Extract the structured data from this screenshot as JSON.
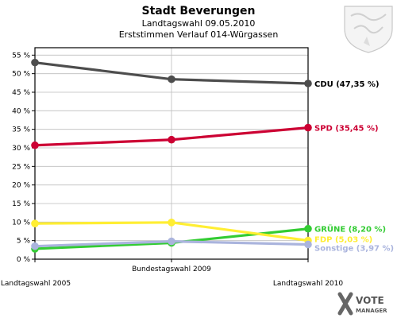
{
  "chart_data": {
    "type": "line",
    "title": "Stadt Beverungen",
    "subtitle_1": "Landtagswahl 09.05.2010",
    "subtitle_2": "Erststimmen Verlauf 014-Würgassen",
    "x": [
      "Landtagswahl 2005",
      "Bundestagswahl 2009",
      "Landtagswahl 2010"
    ],
    "ylim": [
      0,
      57
    ],
    "yticks": [
      "0 %",
      "5 %",
      "10 %",
      "15 %",
      "20 %",
      "25 %",
      "30 %",
      "35 %",
      "40 %",
      "45 %",
      "50 %",
      "55 %"
    ],
    "ytick_values": [
      0,
      5,
      10,
      15,
      20,
      25,
      30,
      35,
      40,
      45,
      50,
      55
    ],
    "grid": true,
    "series": [
      {
        "name": "CDU",
        "label": "CDU (47,35 %)",
        "values": [
          53.0,
          48.5,
          47.35
        ],
        "color": "#4d4d4d"
      },
      {
        "name": "SPD",
        "label": "SPD (35,45 %)",
        "values": [
          30.7,
          32.2,
          35.45
        ],
        "color": "#cc0033"
      },
      {
        "name": "GRÜNE",
        "label": "GRÜNE (8,20 %)",
        "values": [
          2.8,
          4.4,
          8.2
        ],
        "color": "#33cc33"
      },
      {
        "name": "FDP",
        "label": "FDP (5,03 %)",
        "values": [
          9.6,
          9.9,
          5.03
        ],
        "color": "#ffee33"
      },
      {
        "name": "Sonstige",
        "label": "Sonstige (3,97 %)",
        "values": [
          3.5,
          4.8,
          3.97
        ],
        "color": "#aab4dd"
      }
    ]
  },
  "branding": {
    "logo_text_1": "VOTE",
    "logo_text_2": "MANAGER"
  }
}
